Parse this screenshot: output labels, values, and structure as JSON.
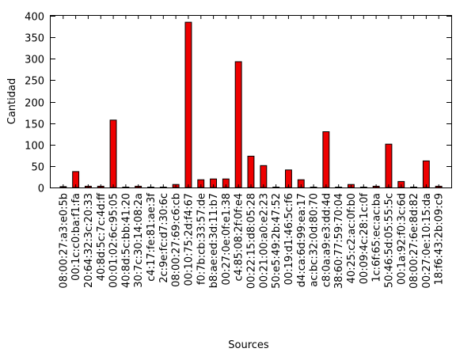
{
  "chart_data": {
    "type": "bar",
    "xlabel": "Sources",
    "ylabel": "Cantidad",
    "ylim": [
      0,
      400
    ],
    "yticks": [
      0,
      50,
      100,
      150,
      200,
      250,
      300,
      350,
      400
    ],
    "grid": false,
    "bar_color": "#ee0000",
    "categories": [
      "08:00:27:a3:e0:5b",
      "00:1c:c0:ba:f1:fa",
      "20:64:32:3c:20:33",
      "40:8d:5c:7c:4d:ff",
      "00:01:02:6c:95:05",
      "40:8d:5c:bb:41:20",
      "30:7c:30:14:08:2a",
      "c4:17:fe:81:ae:3f",
      "2c:9e:fc:d7:30:6c",
      "08:00:27:69:c6:cb",
      "00:10:75:2d:f4:67",
      "f0:7b:cb:33:57:de",
      "b8:ae:ed:3d:11:b7",
      "00:27:0e:0f:e1:38",
      "c4:85:08:2f:0f:e4",
      "00:22:15:d8:05:28",
      "00:21:00:a0:e2:23",
      "50:e5:49:2b:47:52",
      "00:19:d1:46:5c:f6",
      "d4:ca:6d:99:ea:17",
      "ac:bc:32:0d:80:70",
      "c8:0a:a9:e3:dd:4d",
      "38:60:77:59:70:04",
      "40:25:c2:ac:0f:b0",
      "00:09:4c:28:1c:0f",
      "1c:6f:65:ec:ac:ba",
      "50:46:5d:05:55:5c",
      "00:1a:92:f0:3c:6d",
      "08:00:27:6e:8d:82",
      "00:27:0e:10:15:da",
      "18:f6:43:2b:09:c9"
    ],
    "values": [
      2,
      37,
      3,
      3,
      157,
      1,
      3,
      1,
      1,
      7,
      385,
      18,
      20,
      20,
      293,
      73,
      51,
      1,
      41,
      18,
      1,
      130,
      1,
      7,
      1,
      3,
      101,
      14,
      1,
      62,
      3
    ]
  }
}
